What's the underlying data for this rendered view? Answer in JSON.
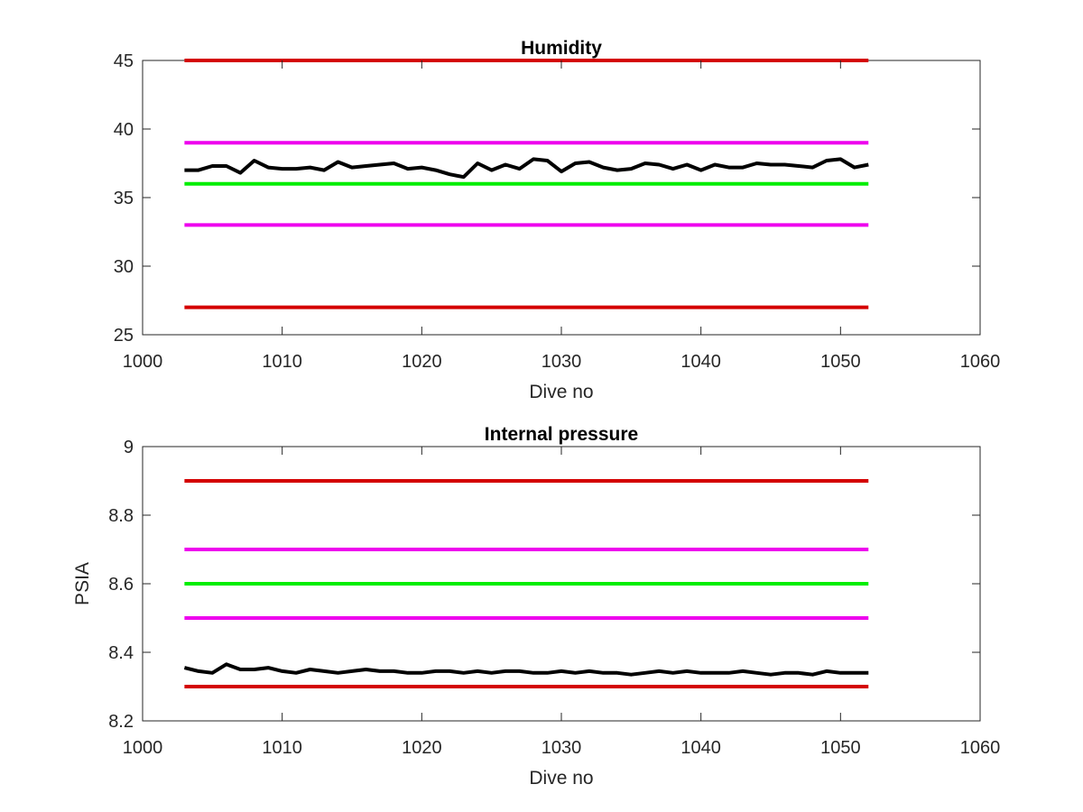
{
  "chart_data": [
    {
      "type": "line",
      "title": "Humidity",
      "xlabel": "Dive no",
      "ylabel": "",
      "xlim": [
        1000,
        1060
      ],
      "ylim": [
        25,
        45
      ],
      "xticks": [
        1000,
        1010,
        1020,
        1030,
        1040,
        1050,
        1060
      ],
      "yticks": [
        25,
        30,
        35,
        40,
        45
      ],
      "grid": false,
      "legend": "none",
      "thresholds": [
        {
          "value": 45,
          "x_range": [
            1003,
            1052
          ],
          "color": "#d40000"
        },
        {
          "value": 39,
          "x_range": [
            1003,
            1052
          ],
          "color": "#ee00ee"
        },
        {
          "value": 36,
          "x_range": [
            1003,
            1052
          ],
          "color": "#00ee00"
        },
        {
          "value": 33,
          "x_range": [
            1003,
            1052
          ],
          "color": "#ee00ee"
        },
        {
          "value": 27,
          "x_range": [
            1003,
            1052
          ],
          "color": "#d40000"
        }
      ],
      "series": [
        {
          "color": "#000000",
          "x": [
            1003,
            1004,
            1005,
            1006,
            1007,
            1008,
            1009,
            1010,
            1011,
            1012,
            1013,
            1014,
            1015,
            1016,
            1017,
            1018,
            1019,
            1020,
            1021,
            1022,
            1023,
            1024,
            1025,
            1026,
            1027,
            1028,
            1029,
            1030,
            1031,
            1032,
            1033,
            1034,
            1035,
            1036,
            1037,
            1038,
            1039,
            1040,
            1041,
            1042,
            1043,
            1044,
            1045,
            1046,
            1047,
            1048,
            1049,
            1050,
            1051,
            1052
          ],
          "values": [
            37.0,
            37.0,
            37.3,
            37.3,
            36.8,
            37.7,
            37.2,
            37.1,
            37.1,
            37.2,
            37.0,
            37.6,
            37.2,
            37.3,
            37.4,
            37.5,
            37.1,
            37.2,
            37.0,
            36.7,
            36.5,
            37.5,
            37.0,
            37.4,
            37.1,
            37.8,
            37.7,
            36.9,
            37.5,
            37.6,
            37.2,
            37.0,
            37.1,
            37.5,
            37.4,
            37.1,
            37.4,
            37.0,
            37.4,
            37.2,
            37.2,
            37.5,
            37.4,
            37.4,
            37.3,
            37.2,
            37.7,
            37.8,
            37.2,
            37.4
          ]
        }
      ]
    },
    {
      "type": "line",
      "title": "Internal pressure",
      "xlabel": "Dive no",
      "ylabel": "PSIA",
      "xlim": [
        1000,
        1060
      ],
      "ylim": [
        8.2,
        9.0
      ],
      "xticks": [
        1000,
        1010,
        1020,
        1030,
        1040,
        1050,
        1060
      ],
      "yticks": [
        8.2,
        8.4,
        8.6,
        8.8,
        9.0
      ],
      "ytick_labels": [
        "8.2",
        "8.4",
        "8.6",
        "8.8",
        "9"
      ],
      "grid": false,
      "legend": "none",
      "thresholds": [
        {
          "value": 8.9,
          "x_range": [
            1003,
            1052
          ],
          "color": "#d40000"
        },
        {
          "value": 8.7,
          "x_range": [
            1003,
            1052
          ],
          "color": "#ee00ee"
        },
        {
          "value": 8.6,
          "x_range": [
            1003,
            1052
          ],
          "color": "#00ee00"
        },
        {
          "value": 8.5,
          "x_range": [
            1003,
            1052
          ],
          "color": "#ee00ee"
        },
        {
          "value": 8.3,
          "x_range": [
            1003,
            1052
          ],
          "color": "#d40000"
        }
      ],
      "series": [
        {
          "color": "#000000",
          "x": [
            1003,
            1004,
            1005,
            1006,
            1007,
            1008,
            1009,
            1010,
            1011,
            1012,
            1013,
            1014,
            1015,
            1016,
            1017,
            1018,
            1019,
            1020,
            1021,
            1022,
            1023,
            1024,
            1025,
            1026,
            1027,
            1028,
            1029,
            1030,
            1031,
            1032,
            1033,
            1034,
            1035,
            1036,
            1037,
            1038,
            1039,
            1040,
            1041,
            1042,
            1043,
            1044,
            1045,
            1046,
            1047,
            1048,
            1049,
            1050,
            1051,
            1052
          ],
          "values": [
            8.355,
            8.345,
            8.34,
            8.365,
            8.35,
            8.35,
            8.355,
            8.345,
            8.34,
            8.35,
            8.345,
            8.34,
            8.345,
            8.35,
            8.345,
            8.345,
            8.34,
            8.34,
            8.345,
            8.345,
            8.34,
            8.345,
            8.34,
            8.345,
            8.345,
            8.34,
            8.34,
            8.345,
            8.34,
            8.345,
            8.34,
            8.34,
            8.335,
            8.34,
            8.345,
            8.34,
            8.345,
            8.34,
            8.34,
            8.34,
            8.345,
            8.34,
            8.335,
            8.34,
            8.34,
            8.335,
            8.345,
            8.34,
            8.34,
            8.34
          ]
        }
      ]
    }
  ]
}
